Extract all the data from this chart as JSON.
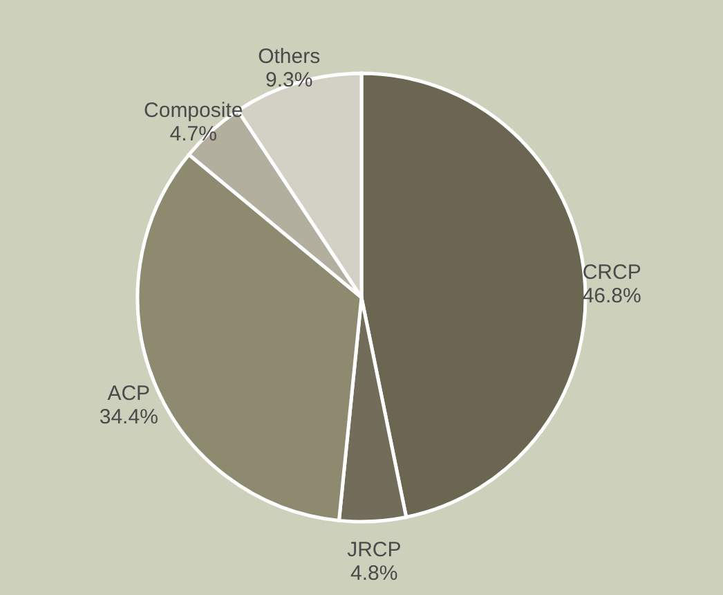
{
  "chart_data": {
    "type": "pie",
    "categories": [
      "CRCP",
      "JRCP",
      "ACP",
      "Composite",
      "Others"
    ],
    "values": [
      46.8,
      4.8,
      34.4,
      4.7,
      9.3
    ],
    "value_labels": [
      "46.8%",
      "4.8%",
      "34.4%",
      "4.7%",
      "9.3%"
    ],
    "colors": [
      "#6b6651",
      "#726d5a",
      "#8e8a6f",
      "#b3af9f",
      "#d3d1c6"
    ]
  }
}
